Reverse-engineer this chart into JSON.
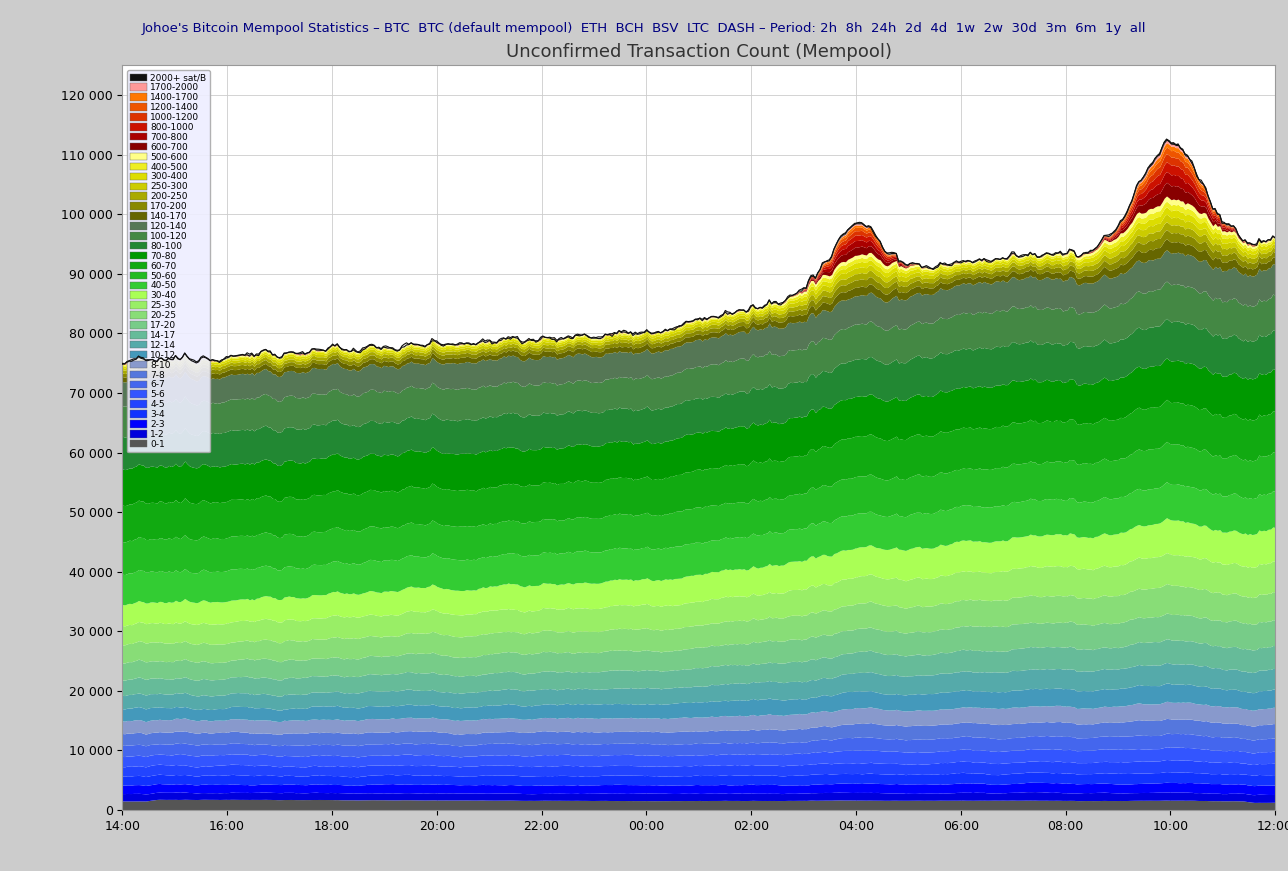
{
  "title": "Unconfirmed Transaction Count (Mempool)",
  "xlabel_ticks": [
    "14:00",
    "16:00",
    "18:00",
    "20:00",
    "22:00",
    "00:00",
    "02:00",
    "04:00",
    "06:00",
    "08:00",
    "10:00",
    "12:00"
  ],
  "ylim": [
    0,
    125000
  ],
  "yticks": [
    0,
    10000,
    20000,
    30000,
    40000,
    50000,
    60000,
    70000,
    80000,
    90000,
    100000,
    110000,
    120000
  ],
  "n_points": 500,
  "layers": [
    {
      "label": "0-1",
      "color": "#555555"
    },
    {
      "label": "1-2",
      "color": "#0000dd"
    },
    {
      "label": "2-3",
      "color": "#0000ff"
    },
    {
      "label": "3-4",
      "color": "#1133ff"
    },
    {
      "label": "4-5",
      "color": "#2244ff"
    },
    {
      "label": "5-6",
      "color": "#3355ff"
    },
    {
      "label": "6-7",
      "color": "#4466ee"
    },
    {
      "label": "7-8",
      "color": "#5577dd"
    },
    {
      "label": "8-10",
      "color": "#8899cc"
    },
    {
      "label": "10-12",
      "color": "#4499bb"
    },
    {
      "label": "12-14",
      "color": "#55aaaa"
    },
    {
      "label": "14-17",
      "color": "#66bb99"
    },
    {
      "label": "17-20",
      "color": "#77cc88"
    },
    {
      "label": "20-25",
      "color": "#88dd77"
    },
    {
      "label": "25-30",
      "color": "#99ee66"
    },
    {
      "label": "30-40",
      "color": "#aaff55"
    },
    {
      "label": "40-50",
      "color": "#33cc33"
    },
    {
      "label": "50-60",
      "color": "#22bb22"
    },
    {
      "label": "60-70",
      "color": "#11aa11"
    },
    {
      "label": "70-80",
      "color": "#009900"
    },
    {
      "label": "80-100",
      "color": "#228833"
    },
    {
      "label": "100-120",
      "color": "#448844"
    },
    {
      "label": "120-140",
      "color": "#557755"
    },
    {
      "label": "140-170",
      "color": "#666600"
    },
    {
      "label": "170-200",
      "color": "#888800"
    },
    {
      "label": "200-250",
      "color": "#aaaa00"
    },
    {
      "label": "250-300",
      "color": "#cccc00"
    },
    {
      "label": "300-400",
      "color": "#dddd00"
    },
    {
      "label": "400-500",
      "color": "#eeee22"
    },
    {
      "label": "500-600",
      "color": "#ffff88"
    },
    {
      "label": "600-700",
      "color": "#880000"
    },
    {
      "label": "700-800",
      "color": "#aa0000"
    },
    {
      "label": "800-1000",
      "color": "#cc1100"
    },
    {
      "label": "1000-1200",
      "color": "#dd3300"
    },
    {
      "label": "1200-1400",
      "color": "#ee5500"
    },
    {
      "label": "1400-1700",
      "color": "#ff7700"
    },
    {
      "label": "1700-2000",
      "color": "#ff9999"
    },
    {
      "label": "2000+ sat/B",
      "color": "#111111"
    }
  ]
}
